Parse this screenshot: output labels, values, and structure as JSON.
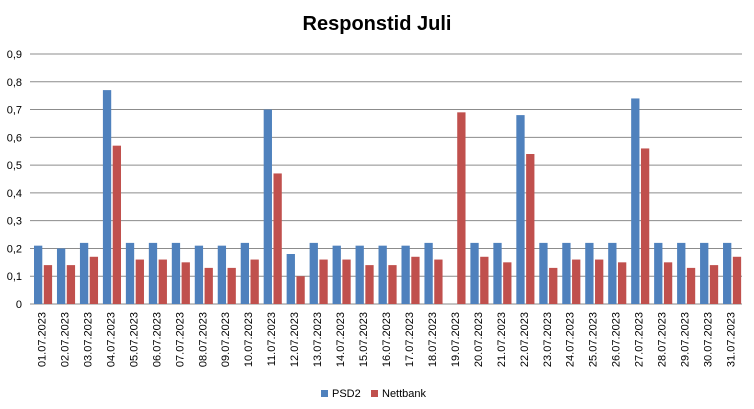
{
  "chart_data": {
    "type": "bar",
    "title": "Responstid Juli",
    "xlabel": "",
    "ylabel": "",
    "ylim": [
      0,
      0.9
    ],
    "y_ticks": [
      "0",
      "0,1",
      "0,2",
      "0,3",
      "0,4",
      "0,5",
      "0,6",
      "0,7",
      "0,8",
      "0,9"
    ],
    "grid": true,
    "legend_position": "bottom",
    "categories": [
      "01.07.2023",
      "02.07.2023",
      "03.07.2023",
      "04.07.2023",
      "05.07.2023",
      "06.07.2023",
      "07.07.2023",
      "08.07.2023",
      "09.07.2023",
      "10.07.2023",
      "11.07.2023",
      "12.07.2023",
      "13.07.2023",
      "14.07.2023",
      "15.07.2023",
      "16.07.2023",
      "17.07.2023",
      "18.07.2023",
      "19.07.2023",
      "20.07.2023",
      "21.07.2023",
      "22.07.2023",
      "23.07.2023",
      "24.07.2023",
      "25.07.2023",
      "26.07.2023",
      "27.07.2023",
      "28.07.2023",
      "29.07.2023",
      "30.07.2023",
      "31.07.2023"
    ],
    "series": [
      {
        "name": "PSD2",
        "color": "#4F81BD",
        "values": [
          0.21,
          0.2,
          0.22,
          0.77,
          0.22,
          0.22,
          0.22,
          0.21,
          0.21,
          0.22,
          0.7,
          0.18,
          0.22,
          0.21,
          0.21,
          0.21,
          0.21,
          0.22,
          0,
          0.22,
          0.22,
          0.68,
          0.22,
          0.22,
          0.22,
          0.22,
          0.74,
          0.22,
          0.22,
          0.22,
          0.22
        ]
      },
      {
        "name": "Nettbank",
        "color": "#C0504D",
        "values": [
          0.14,
          0.14,
          0.17,
          0.57,
          0.16,
          0.16,
          0.15,
          0.13,
          0.13,
          0.16,
          0.47,
          0.1,
          0.16,
          0.16,
          0.14,
          0.14,
          0.17,
          0.16,
          0.69,
          0.17,
          0.15,
          0.54,
          0.13,
          0.16,
          0.16,
          0.15,
          0.56,
          0.15,
          0.13,
          0.14,
          0.17
        ]
      }
    ]
  }
}
